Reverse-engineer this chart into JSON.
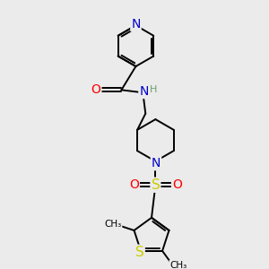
{
  "background_color": "#ebebeb",
  "atom_colors": {
    "C": "#000000",
    "N": "#0000cc",
    "O": "#ff0000",
    "S": "#cccc00",
    "H": "#6a9f6a"
  },
  "bond_color": "#000000",
  "figsize": [
    3.0,
    3.0
  ],
  "dpi": 100
}
